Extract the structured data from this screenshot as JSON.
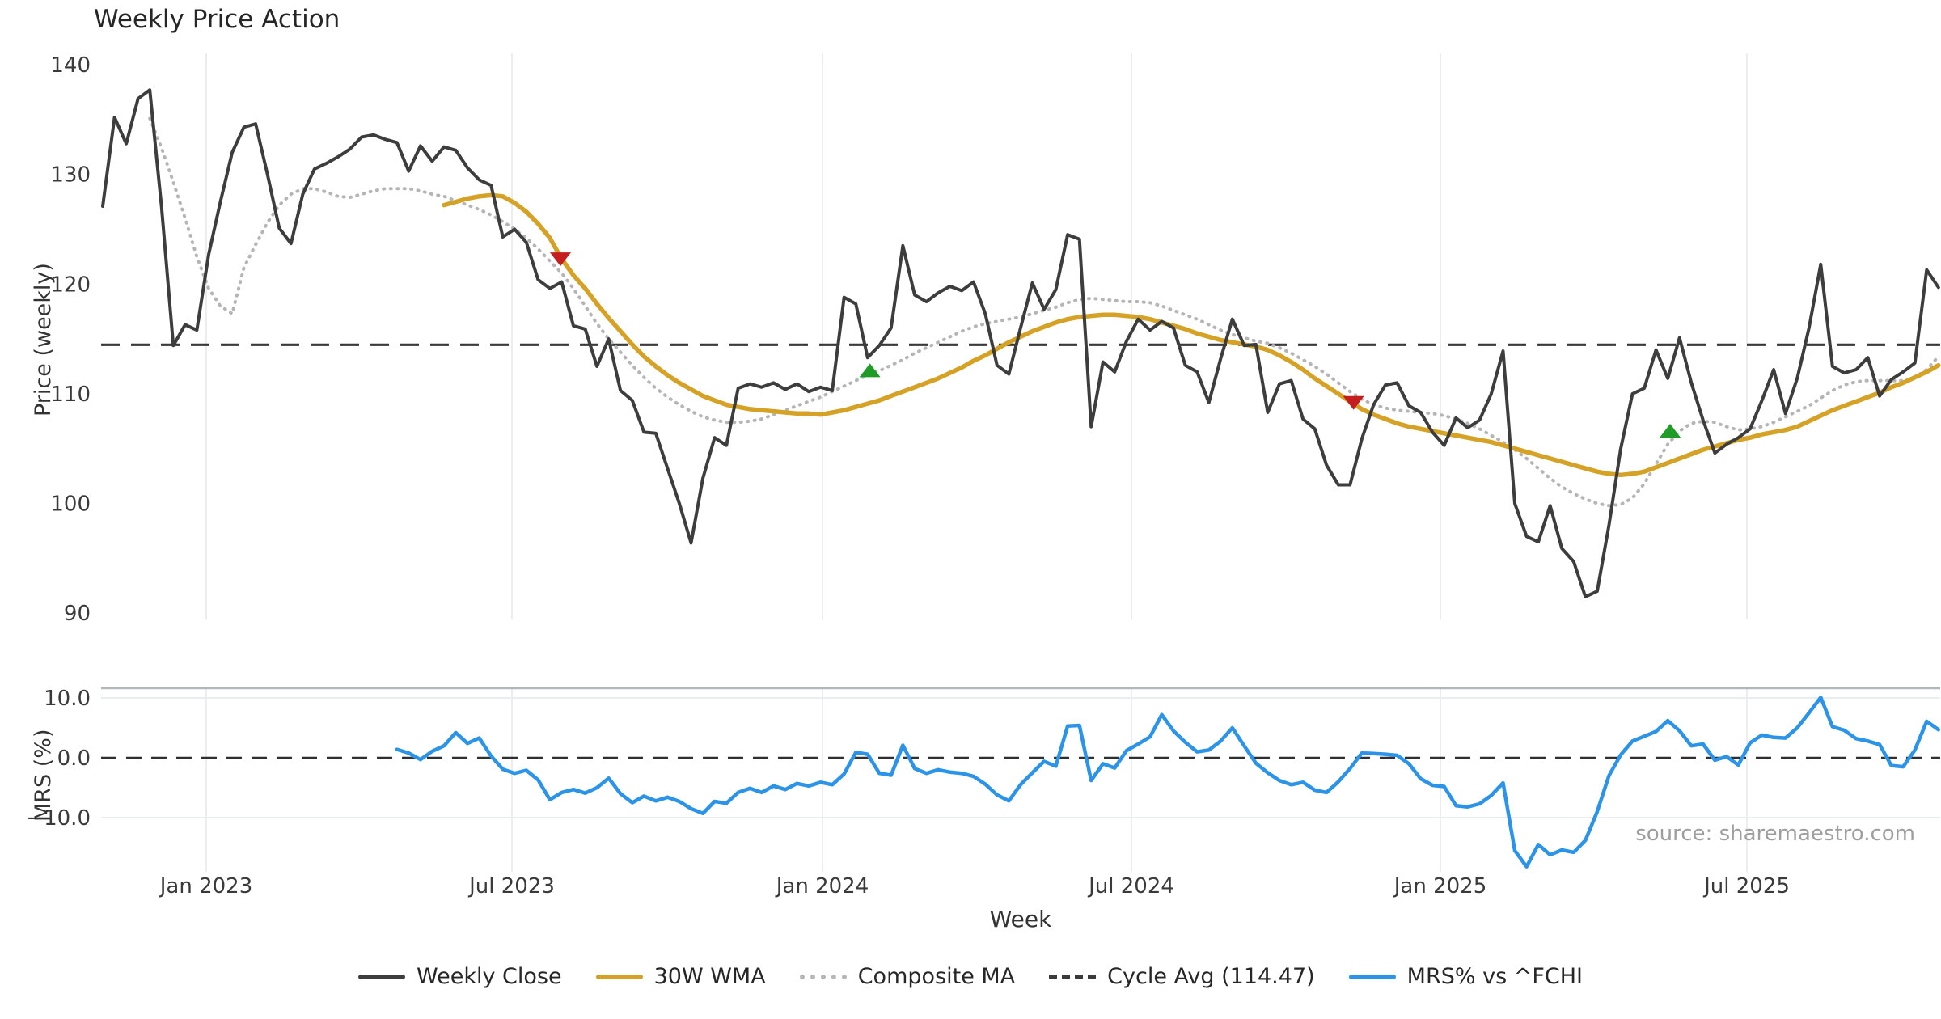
{
  "source_note": "source: sharemaestro.com",
  "legend": {
    "items": [
      {
        "label": "Weekly Close",
        "color": "#3d3d3d",
        "style": "solid"
      },
      {
        "label": "30W WMA",
        "color": "#d5a226",
        "style": "solid"
      },
      {
        "label": "Composite MA",
        "color": "#b5b5b5",
        "style": "dotted"
      },
      {
        "label": "Cycle Avg (114.47)",
        "color": "#3a3a3a",
        "style": "dashed"
      },
      {
        "label": "MRS% vs ^FCHI",
        "color": "#2b93e8",
        "style": "solid"
      }
    ]
  },
  "chart_data": {
    "type": "line",
    "title": "Weekly Price Action",
    "xlabel": "Week",
    "x_tick_labels": [
      "Jan 2023",
      "Jul 2023",
      "Jan 2024",
      "Jul 2024",
      "Jan 2025",
      "Jul 2025"
    ],
    "panels": [
      {
        "name": "price",
        "ylabel": "Price (weekly)",
        "ylim": [
          89.4,
          140.8
        ],
        "yticks": [
          140,
          130,
          120,
          110,
          100,
          90
        ],
        "grid": "vertical-only",
        "cycle_avg": 114.47,
        "series": [
          {
            "name": "Weekly Close",
            "color": "#3d3d3d",
            "style": "solid",
            "start_week": 0,
            "values": [
              127.1,
              135.2,
              132.8,
              136.9,
              137.7,
              127.0,
              114.4,
              116.3,
              115.8,
              122.7,
              127.5,
              132.0,
              134.3,
              134.6,
              130.0,
              125.1,
              123.7,
              128.2,
              130.5,
              131.0,
              131.6,
              132.3,
              133.4,
              133.6,
              133.2,
              132.9,
              130.3,
              132.6,
              131.2,
              132.5,
              132.2,
              130.6,
              129.5,
              129.0,
              124.3,
              125.0,
              123.8,
              120.4,
              119.6,
              120.2,
              116.2,
              115.9,
              112.5,
              115.0,
              110.3,
              109.4,
              106.5,
              106.4,
              103.2,
              100.0,
              96.4,
              102.3,
              106.0,
              105.3,
              110.5,
              110.9,
              110.6,
              111.0,
              110.4,
              110.9,
              110.2,
              110.6,
              110.3,
              118.8,
              118.2,
              113.3,
              114.4,
              116.0,
              123.5,
              119.0,
              118.4,
              119.2,
              119.8,
              119.4,
              120.2,
              117.3,
              112.6,
              111.8,
              116.0,
              120.1,
              117.7,
              119.5,
              124.5,
              124.1,
              107.0,
              112.9,
              112.0,
              114.8,
              116.8,
              115.8,
              116.6,
              116.0,
              112.6,
              112.0,
              109.2,
              113.2,
              116.8,
              114.4,
              114.5,
              108.3,
              110.9,
              111.2,
              107.7,
              106.8,
              103.5,
              101.7,
              101.7,
              105.9,
              109.0,
              110.8,
              111.0,
              108.9,
              108.3,
              106.5,
              105.3,
              107.8,
              106.9,
              107.6,
              110.0,
              113.9,
              100.0,
              97.0,
              96.5,
              99.8,
              95.9,
              94.7,
              91.5,
              92.0,
              98.0,
              105.0,
              110.0,
              110.5,
              114.0,
              111.4,
              115.1,
              111.0,
              107.6,
              104.6,
              105.4,
              106.0,
              106.8,
              109.4,
              112.2,
              108.2,
              111.4,
              116.0,
              121.8,
              112.5,
              111.9,
              112.2,
              113.3,
              109.8,
              111.3,
              112.0,
              112.8,
              121.3,
              119.7
            ]
          },
          {
            "name": "30W WMA",
            "color": "#d5a226",
            "style": "solid",
            "start_week": 29,
            "values": [
              127.2,
              127.5,
              127.8,
              128.0,
              128.1,
              128.0,
              127.4,
              126.6,
              125.5,
              124.2,
              122.3,
              120.8,
              119.6,
              118.2,
              116.9,
              115.7,
              114.5,
              113.4,
              112.5,
              111.7,
              111.0,
              110.4,
              109.8,
              109.4,
              109.0,
              108.8,
              108.6,
              108.5,
              108.4,
              108.3,
              108.2,
              108.2,
              108.1,
              108.3,
              108.5,
              108.8,
              109.1,
              109.4,
              109.8,
              110.2,
              110.6,
              111.0,
              111.4,
              111.9,
              112.4,
              113.0,
              113.5,
              114.1,
              114.7,
              115.2,
              115.7,
              116.1,
              116.5,
              116.8,
              117.0,
              117.1,
              117.2,
              117.2,
              117.1,
              117.0,
              116.8,
              116.5,
              116.2,
              115.9,
              115.5,
              115.2,
              114.9,
              114.7,
              114.5,
              114.3,
              114.0,
              113.5,
              112.9,
              112.2,
              111.4,
              110.7,
              110.0,
              109.3,
              108.6,
              108.1,
              107.7,
              107.3,
              107.0,
              106.8,
              106.6,
              106.4,
              106.2,
              106.0,
              105.8,
              105.6,
              105.3,
              105.0,
              104.7,
              104.4,
              104.1,
              103.8,
              103.5,
              103.2,
              102.9,
              102.7,
              102.6,
              102.7,
              102.9,
              103.3,
              103.7,
              104.1,
              104.5,
              104.9,
              105.2,
              105.5,
              105.8,
              106.0,
              106.3,
              106.5,
              106.7,
              107.0,
              107.5,
              108.0,
              108.5,
              108.9,
              109.3,
              109.7,
              110.1,
              110.6,
              111.0,
              111.5,
              112.0,
              112.6
            ]
          },
          {
            "name": "Composite MA",
            "color": "#b5b5b5",
            "style": "dotted",
            "start_week": 4,
            "values": [
              135.1,
              132.4,
              129.3,
              126.0,
              122.5,
              119.6,
              118.0,
              117.3,
              121.5,
              123.6,
              125.6,
              127.2,
              128.2,
              128.7,
              128.7,
              128.4,
              128.0,
              127.9,
              128.2,
              128.5,
              128.7,
              128.7,
              128.7,
              128.5,
              128.2,
              128.0,
              127.6,
              127.2,
              126.8,
              126.3,
              125.7,
              125.0,
              124.2,
              123.2,
              122.1,
              121.0,
              119.6,
              118.0,
              116.4,
              115.0,
              113.8,
              112.6,
              111.5,
              110.5,
              109.7,
              109.0,
              108.4,
              107.9,
              107.6,
              107.4,
              107.4,
              107.5,
              107.7,
              108.1,
              108.5,
              108.9,
              109.3,
              109.7,
              110.2,
              110.7,
              111.2,
              111.7,
              112.1,
              112.6,
              113.1,
              113.7,
              114.2,
              114.7,
              115.2,
              115.7,
              116.1,
              116.4,
              116.6,
              116.8,
              117.0,
              117.3,
              117.6,
              117.9,
              118.3,
              118.6,
              118.7,
              118.6,
              118.5,
              118.4,
              118.4,
              118.3,
              118.0,
              117.6,
              117.2,
              116.8,
              116.3,
              115.8,
              115.4,
              115.1,
              114.8,
              114.6,
              114.2,
              113.7,
              113.1,
              112.5,
              111.8,
              111.0,
              110.2,
              109.5,
              109.0,
              108.7,
              108.5,
              108.4,
              108.3,
              108.2,
              108.0,
              107.7,
              107.3,
              106.8,
              106.2,
              105.6,
              104.9,
              104.1,
              103.2,
              102.3,
              101.5,
              100.9,
              100.4,
              100.0,
              99.8,
              99.9,
              100.5,
              101.8,
              103.6,
              105.4,
              106.6,
              107.3,
              107.5,
              107.4,
              107.0,
              106.7,
              106.8,
              107.0,
              107.4,
              107.9,
              108.4,
              108.9,
              109.6,
              110.3,
              110.8,
              111.1,
              111.2,
              111.2,
              111.2,
              111.2,
              111.5,
              112.2,
              113.4
            ]
          }
        ],
        "markers": [
          {
            "type": "sell",
            "shape": "triangle-down",
            "color": "#c41e1e",
            "week": 38.9,
            "price": 122.3
          },
          {
            "type": "buy",
            "shape": "triangle-up",
            "color": "#1f9b27",
            "week": 65.2,
            "price": 112.1
          },
          {
            "type": "sell",
            "shape": "triangle-down",
            "color": "#c41e1e",
            "week": 106.3,
            "price": 109.2
          },
          {
            "type": "buy",
            "shape": "triangle-up",
            "color": "#1f9b27",
            "week": 133.2,
            "price": 106.6
          }
        ]
      },
      {
        "name": "mrs",
        "ylabel": "MRS (%)",
        "ylim": [
          -19,
          11.5
        ],
        "yticks": [
          "10.0",
          "0.0",
          "−10.0"
        ],
        "ytick_values": [
          10,
          0,
          -10
        ],
        "zero_line": "dashed",
        "series": [
          {
            "name": "MRS% vs ^FCHI",
            "color": "#2b93e8",
            "style": "solid",
            "start_week": 25,
            "values": [
              1.4,
              0.8,
              -0.3,
              1.1,
              2.0,
              4.2,
              2.4,
              3.3,
              0.3,
              -1.9,
              -2.6,
              -2.1,
              -3.7,
              -7.0,
              -5.8,
              -5.3,
              -5.9,
              -5.0,
              -3.4,
              -6.0,
              -7.5,
              -6.4,
              -7.2,
              -6.6,
              -7.3,
              -8.5,
              -9.3,
              -7.3,
              -7.6,
              -5.8,
              -5.1,
              -5.8,
              -4.7,
              -5.3,
              -4.3,
              -4.7,
              -4.1,
              -4.5,
              -2.7,
              0.9,
              0.6,
              -2.6,
              -2.9,
              2.1,
              -1.8,
              -2.6,
              -2.0,
              -2.4,
              -2.6,
              -3.1,
              -4.4,
              -6.2,
              -7.2,
              -4.5,
              -2.5,
              -0.6,
              -1.4,
              5.3,
              5.4,
              -3.8,
              -1.0,
              -1.7,
              1.2,
              2.3,
              3.5,
              7.2,
              4.5,
              2.6,
              1.0,
              1.3,
              2.8,
              5.0,
              2.0,
              -0.9,
              -2.5,
              -3.8,
              -4.5,
              -4.1,
              -5.4,
              -5.8,
              -4.0,
              -1.8,
              0.8,
              0.7,
              0.6,
              0.4,
              -1.0,
              -3.5,
              -4.6,
              -4.8,
              -8.0,
              -8.2,
              -7.7,
              -6.3,
              -4.2,
              -15.5,
              -18.2,
              -14.5,
              -16.2,
              -15.4,
              -15.8,
              -13.8,
              -9.0,
              -3.0,
              0.5,
              2.8,
              3.6,
              4.4,
              6.2,
              4.5,
              2.0,
              2.3,
              -0.4,
              0.2,
              -1.2,
              2.5,
              3.8,
              3.4,
              3.3,
              5.0,
              7.5,
              10.1,
              5.2,
              4.6,
              3.2,
              2.8,
              2.2,
              -1.3,
              -1.5,
              1.3,
              6.1,
              4.7
            ]
          }
        ]
      }
    ]
  }
}
